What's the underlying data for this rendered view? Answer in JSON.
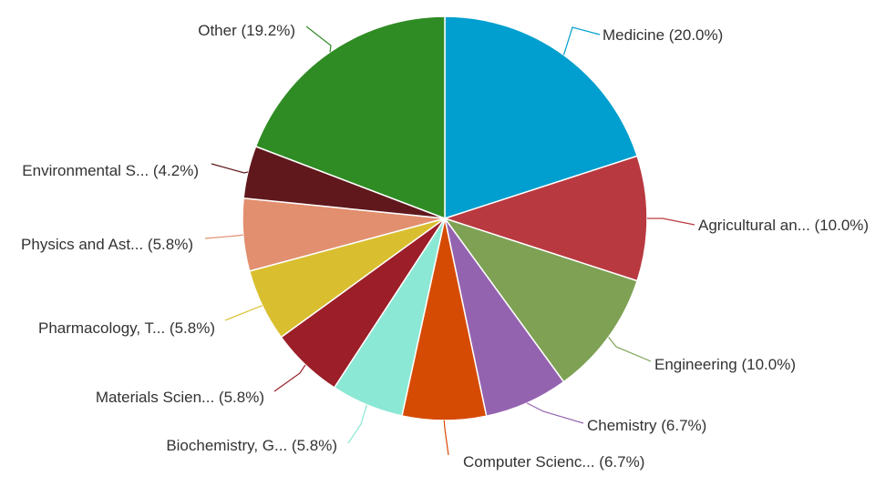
{
  "chart_data": {
    "type": "pie",
    "title": "",
    "legend": "none",
    "slices": [
      {
        "label": "Medicine (20.0%)",
        "value": 20.0,
        "color": "#009fcf"
      },
      {
        "label": "Agricultural an... (10.0%)",
        "value": 10.0,
        "color": "#b93940"
      },
      {
        "label": "Engineering (10.0%)",
        "value": 10.0,
        "color": "#7ea154"
      },
      {
        "label": "Chemistry (6.7%)",
        "value": 6.7,
        "color": "#9463b0"
      },
      {
        "label": "Computer Scienc... (6.7%)",
        "value": 6.7,
        "color": "#d64b04"
      },
      {
        "label": "Biochemistry, G... (5.8%)",
        "value": 5.8,
        "color": "#8be8d4"
      },
      {
        "label": "Materials Scien... (5.8%)",
        "value": 5.8,
        "color": "#9b1e28"
      },
      {
        "label": "Pharmacology, T... (5.8%)",
        "value": 5.8,
        "color": "#d9bf2f"
      },
      {
        "label": "Physics and Ast... (5.8%)",
        "value": 5.8,
        "color": "#e28f6f"
      },
      {
        "label": "Environmental S... (4.2%)",
        "value": 4.2,
        "color": "#60181c"
      },
      {
        "label": "Other (19.2%)",
        "value": 19.2,
        "color": "#2f8c24"
      }
    ]
  }
}
